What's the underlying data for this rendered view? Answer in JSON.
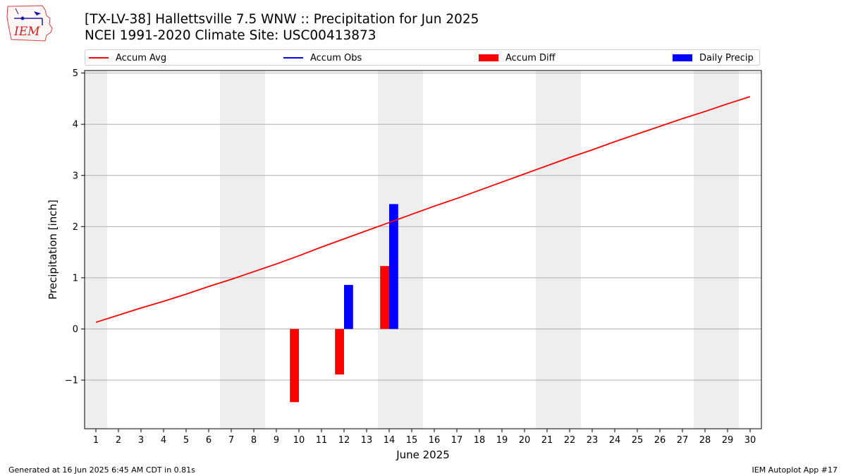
{
  "header": {
    "title_line1": "[TX-LV-38] Hallettsville 7.5 WNW :: Precipitation for Jun 2025",
    "title_line2": "NCEI 1991-2020 Climate Site: USC00413873",
    "logo_text": "IEM"
  },
  "footer": {
    "generated": "Generated at 16 Jun 2025 6:45 AM CDT in 0.81s",
    "app": "IEM Autoplot App #17"
  },
  "colors": {
    "accum_avg": "#ff0000",
    "accum_obs": "#0000ff",
    "accum_diff": "#ff0000",
    "daily_precip": "#0000ff",
    "weekend_band": "#eeeeee",
    "grid": "#b0b0b0"
  },
  "chart_data": {
    "type": "line",
    "xlabel": "June 2025",
    "ylabel": "Precipitation [inch]",
    "xlim": [
      0.5,
      30.5
    ],
    "ylim": [
      -1.95,
      5.05
    ],
    "x_ticks": [
      1,
      2,
      3,
      4,
      5,
      6,
      7,
      8,
      9,
      10,
      11,
      12,
      13,
      14,
      15,
      16,
      17,
      18,
      19,
      20,
      21,
      22,
      23,
      24,
      25,
      26,
      27,
      28,
      29,
      30
    ],
    "y_ticks": [
      -1,
      0,
      1,
      2,
      3,
      4,
      5
    ],
    "y_tick_labels": [
      "−1",
      "0",
      "1",
      "2",
      "3",
      "4",
      "5"
    ],
    "grid": "horizontal",
    "legend_position": "top",
    "shaded_days": [
      1,
      7,
      8,
      14,
      15,
      21,
      22,
      28,
      29
    ],
    "legend": [
      "Accum Avg",
      "Accum Obs",
      "Accum Diff",
      "Daily Precip"
    ],
    "series": [
      {
        "name": "Accum Avg",
        "kind": "line",
        "x": [
          1,
          2,
          3,
          4,
          5,
          6,
          7,
          8,
          9,
          10,
          11,
          12,
          13,
          14,
          15,
          16,
          17,
          18,
          19,
          20,
          21,
          22,
          23,
          24,
          25,
          26,
          27,
          28,
          29,
          30
        ],
        "values": [
          0.13,
          0.27,
          0.41,
          0.54,
          0.68,
          0.83,
          0.97,
          1.12,
          1.27,
          1.43,
          1.6,
          1.76,
          1.92,
          2.08,
          2.24,
          2.4,
          2.55,
          2.71,
          2.87,
          3.03,
          3.19,
          3.35,
          3.5,
          3.66,
          3.81,
          3.96,
          4.11,
          4.25,
          4.4,
          4.54
        ]
      },
      {
        "name": "Accum Obs",
        "kind": "line",
        "x": [],
        "values": []
      },
      {
        "name": "Accum Diff",
        "kind": "bar",
        "x": [
          10,
          12,
          14
        ],
        "values": [
          -1.43,
          -0.89,
          1.23
        ]
      },
      {
        "name": "Daily Precip",
        "kind": "bar",
        "x": [
          12,
          14
        ],
        "values": [
          0.86,
          2.44
        ]
      }
    ]
  }
}
